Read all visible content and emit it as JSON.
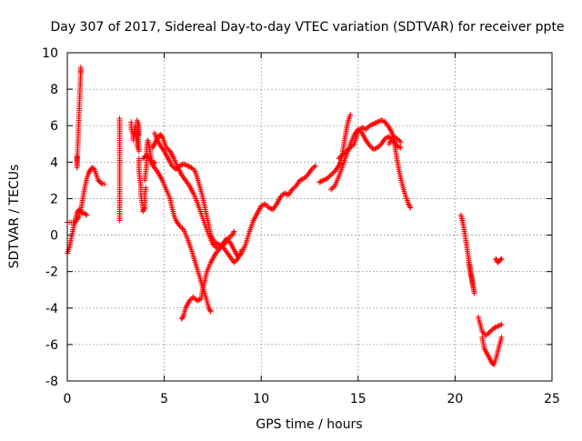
{
  "chart_data": {
    "type": "scatter",
    "title": "Day 307 of 2017, Sidereal Day-to-day VTEC variation (SDTVAR) for receiver ppte",
    "xlabel": "GPS time / hours",
    "ylabel": "SDTVAR / TECUs",
    "xlim": [
      0,
      25
    ],
    "ylim": [
      -8,
      10
    ],
    "xticks": [
      "0",
      "5",
      "10",
      "15",
      "20",
      "25"
    ],
    "yticks": [
      "-8",
      "-6",
      "-4",
      "-2",
      "0",
      "2",
      "4",
      "6",
      "8",
      "10"
    ],
    "grid": true,
    "marker": "+",
    "series_color": "#ff0000",
    "tracks": [
      [
        [
          0.0,
          -1.0
        ],
        [
          0.1,
          -0.7
        ],
        [
          0.2,
          -0.2
        ],
        [
          0.3,
          0.3
        ],
        [
          0.4,
          0.8
        ],
        [
          0.5,
          1.2
        ],
        [
          0.6,
          1.4
        ],
        [
          0.7,
          1.3
        ],
        [
          0.8,
          1.2
        ],
        [
          0.9,
          1.2
        ],
        [
          1.0,
          1.1
        ]
      ],
      [
        [
          0.0,
          0.7
        ],
        [
          0.2,
          0.7
        ],
        [
          0.4,
          0.7
        ],
        [
          0.6,
          1.0
        ],
        [
          0.7,
          1.4
        ],
        [
          0.8,
          2.0
        ],
        [
          0.9,
          2.6
        ],
        [
          1.0,
          3.1
        ],
        [
          1.1,
          3.4
        ],
        [
          1.2,
          3.6
        ],
        [
          1.3,
          3.7
        ],
        [
          1.4,
          3.6
        ],
        [
          1.5,
          3.3
        ],
        [
          1.6,
          3.0
        ],
        [
          1.7,
          2.9
        ],
        [
          1.8,
          2.8
        ],
        [
          1.9,
          2.8
        ]
      ],
      [
        [
          2.7,
          6.4
        ],
        [
          2.7,
          5.4
        ],
        [
          2.7,
          4.2
        ],
        [
          2.7,
          2.6
        ],
        [
          2.7,
          2.1
        ],
        [
          2.7,
          1.4
        ],
        [
          2.7,
          1.1
        ],
        [
          2.7,
          0.8
        ]
      ],
      [
        [
          3.3,
          6.2
        ],
        [
          3.3,
          5.8
        ],
        [
          3.4,
          5.5
        ],
        [
          3.4,
          5.2
        ],
        [
          3.5,
          6.0
        ],
        [
          3.5,
          5.6
        ],
        [
          3.6,
          5.2
        ],
        [
          3.6,
          4.9
        ],
        [
          3.7,
          4.6
        ],
        [
          3.6,
          6.3
        ],
        [
          3.7,
          6.0
        ],
        [
          3.7,
          5.5
        ]
      ],
      [
        [
          3.7,
          4.2
        ],
        [
          3.7,
          3.6
        ],
        [
          3.75,
          3.0
        ],
        [
          3.8,
          2.6
        ],
        [
          3.8,
          2.2
        ],
        [
          3.85,
          1.8
        ],
        [
          3.9,
          1.6
        ],
        [
          3.9,
          1.3
        ],
        [
          4.0,
          1.5
        ],
        [
          4.0,
          2.2
        ],
        [
          4.05,
          2.6
        ]
      ],
      [
        [
          4.0,
          3.0
        ],
        [
          4.1,
          4.0
        ],
        [
          4.1,
          4.8
        ],
        [
          4.15,
          5.2
        ],
        [
          4.2,
          5.0
        ],
        [
          4.3,
          4.4
        ],
        [
          4.4,
          3.8
        ],
        [
          4.5,
          4.0
        ]
      ],
      [
        [
          4.4,
          4.8
        ],
        [
          4.5,
          5.0
        ],
        [
          4.6,
          5.2
        ],
        [
          4.7,
          5.4
        ],
        [
          4.8,
          5.5
        ],
        [
          4.9,
          5.4
        ],
        [
          5.0,
          5.1
        ],
        [
          5.1,
          4.8
        ],
        [
          5.3,
          4.6
        ],
        [
          5.5,
          4.2
        ],
        [
          5.7,
          3.7
        ],
        [
          5.9,
          3.3
        ],
        [
          6.1,
          3.0
        ],
        [
          6.3,
          2.7
        ],
        [
          6.5,
          2.3
        ],
        [
          6.7,
          1.8
        ],
        [
          6.9,
          1.2
        ],
        [
          7.1,
          0.6
        ],
        [
          7.3,
          0.0
        ],
        [
          7.5,
          -0.5
        ],
        [
          7.7,
          -0.7
        ],
        [
          7.9,
          -0.7
        ],
        [
          8.1,
          -0.5
        ],
        [
          8.3,
          -0.2
        ],
        [
          8.5,
          0.0
        ],
        [
          8.6,
          0.2
        ]
      ],
      [
        [
          3.9,
          4.2
        ],
        [
          4.1,
          4.4
        ],
        [
          4.3,
          4.1
        ],
        [
          4.5,
          3.7
        ],
        [
          4.7,
          3.4
        ],
        [
          4.9,
          3.0
        ],
        [
          5.1,
          2.5
        ],
        [
          5.3,
          2.0
        ],
        [
          5.4,
          1.5
        ],
        [
          5.5,
          1.1
        ],
        [
          5.6,
          0.8
        ],
        [
          5.8,
          0.5
        ],
        [
          6.0,
          0.3
        ],
        [
          6.2,
          -0.2
        ],
        [
          6.4,
          -0.8
        ],
        [
          6.6,
          -1.5
        ],
        [
          6.8,
          -2.2
        ],
        [
          7.0,
          -2.9
        ],
        [
          7.2,
          -3.6
        ],
        [
          7.3,
          -4.0
        ],
        [
          7.4,
          -4.2
        ]
      ],
      [
        [
          5.9,
          -4.6
        ],
        [
          6.0,
          -4.4
        ],
        [
          6.1,
          -4.0
        ],
        [
          6.3,
          -3.6
        ],
        [
          6.5,
          -3.4
        ],
        [
          6.7,
          -3.6
        ],
        [
          6.9,
          -3.5
        ],
        [
          7.0,
          -2.9
        ],
        [
          7.2,
          -2.0
        ],
        [
          7.4,
          -1.5
        ],
        [
          7.6,
          -1.1
        ],
        [
          7.8,
          -0.8
        ],
        [
          8.0,
          -0.5
        ],
        [
          8.2,
          -0.2
        ],
        [
          8.4,
          -0.4
        ],
        [
          8.6,
          -0.8
        ],
        [
          8.8,
          -1.2
        ],
        [
          9.0,
          -1.0
        ],
        [
          9.2,
          -0.5
        ],
        [
          9.4,
          0.2
        ],
        [
          9.6,
          0.8
        ],
        [
          9.8,
          1.2
        ],
        [
          10.0,
          1.6
        ],
        [
          10.2,
          1.7
        ],
        [
          10.4,
          1.5
        ],
        [
          10.6,
          1.4
        ],
        [
          10.8,
          1.7
        ],
        [
          11.0,
          2.1
        ],
        [
          11.2,
          2.3
        ],
        [
          11.4,
          2.2
        ],
        [
          11.6,
          2.5
        ],
        [
          11.8,
          2.7
        ],
        [
          12.0,
          3.0
        ],
        [
          12.2,
          3.1
        ],
        [
          12.4,
          3.3
        ],
        [
          12.6,
          3.6
        ],
        [
          12.8,
          3.8
        ]
      ],
      [
        [
          4.5,
          5.6
        ],
        [
          4.6,
          5.3
        ],
        [
          4.8,
          4.9
        ],
        [
          5.0,
          4.6
        ],
        [
          5.2,
          4.2
        ],
        [
          5.4,
          3.8
        ],
        [
          5.6,
          3.6
        ],
        [
          5.8,
          3.8
        ],
        [
          6.0,
          3.9
        ],
        [
          6.2,
          3.8
        ],
        [
          6.4,
          3.7
        ],
        [
          6.6,
          3.5
        ],
        [
          6.8,
          2.8
        ],
        [
          7.0,
          2.0
        ],
        [
          7.2,
          1.0
        ],
        [
          7.4,
          0.0
        ],
        [
          7.6,
          -0.4
        ],
        [
          7.8,
          -0.5
        ],
        [
          8.0,
          -0.6
        ],
        [
          8.2,
          -0.9
        ],
        [
          8.4,
          -1.2
        ],
        [
          8.6,
          -1.5
        ],
        [
          8.8,
          -1.3
        ],
        [
          9.0,
          -0.8
        ]
      ],
      [
        [
          13.0,
          2.9
        ],
        [
          13.2,
          3.0
        ],
        [
          13.4,
          3.1
        ],
        [
          13.6,
          3.3
        ],
        [
          13.8,
          3.5
        ],
        [
          14.0,
          3.8
        ],
        [
          14.1,
          4.0
        ],
        [
          14.2,
          4.5
        ],
        [
          14.3,
          5.2
        ],
        [
          14.4,
          5.8
        ],
        [
          14.5,
          6.3
        ],
        [
          14.6,
          6.6
        ]
      ],
      [
        [
          13.6,
          2.5
        ],
        [
          13.8,
          2.7
        ],
        [
          14.0,
          3.2
        ],
        [
          14.2,
          3.8
        ],
        [
          14.4,
          4.4
        ],
        [
          14.6,
          5.0
        ],
        [
          14.8,
          5.5
        ],
        [
          15.0,
          5.8
        ],
        [
          15.2,
          5.6
        ],
        [
          15.4,
          5.2
        ],
        [
          15.6,
          4.9
        ],
        [
          15.8,
          4.7
        ],
        [
          16.0,
          4.8
        ],
        [
          16.2,
          5.0
        ],
        [
          16.4,
          5.3
        ],
        [
          16.6,
          5.4
        ],
        [
          16.8,
          5.2
        ],
        [
          17.0,
          4.9
        ],
        [
          17.2,
          4.8
        ]
      ],
      [
        [
          14.0,
          4.2
        ],
        [
          14.4,
          4.6
        ],
        [
          14.8,
          5.0
        ],
        [
          15.0,
          5.7
        ],
        [
          15.2,
          5.9
        ],
        [
          15.4,
          5.8
        ],
        [
          15.6,
          6.0
        ],
        [
          15.8,
          6.1
        ],
        [
          16.0,
          6.2
        ],
        [
          16.2,
          6.3
        ],
        [
          16.4,
          6.2
        ],
        [
          16.6,
          5.9
        ],
        [
          16.8,
          5.5
        ],
        [
          17.0,
          4.2
        ],
        [
          17.1,
          3.6
        ],
        [
          17.2,
          3.1
        ],
        [
          17.3,
          2.7
        ],
        [
          17.4,
          2.3
        ],
        [
          17.5,
          2.0
        ],
        [
          17.6,
          1.7
        ],
        [
          17.7,
          1.5
        ]
      ],
      [
        [
          16.6,
          5.0
        ],
        [
          16.8,
          5.4
        ],
        [
          17.0,
          5.3
        ],
        [
          17.2,
          5.1
        ]
      ],
      [
        [
          20.3,
          1.1
        ],
        [
          20.4,
          0.7
        ],
        [
          20.5,
          0.1
        ],
        [
          20.6,
          -0.6
        ],
        [
          20.7,
          -1.3
        ],
        [
          20.8,
          -2.0
        ],
        [
          20.9,
          -2.6
        ],
        [
          21.0,
          -3.2
        ],
        [
          20.7,
          -1.5
        ],
        [
          20.8,
          -1.8
        ]
      ],
      [
        [
          21.2,
          -4.5
        ],
        [
          21.3,
          -4.9
        ],
        [
          21.4,
          -5.3
        ],
        [
          21.6,
          -5.5
        ],
        [
          21.8,
          -5.3
        ],
        [
          22.0,
          -5.1
        ],
        [
          22.2,
          -5.0
        ],
        [
          22.4,
          -4.9
        ]
      ],
      [
        [
          21.4,
          -5.6
        ],
        [
          21.5,
          -6.2
        ],
        [
          21.7,
          -6.6
        ],
        [
          21.9,
          -7.0
        ],
        [
          22.0,
          -7.1
        ],
        [
          22.1,
          -6.8
        ],
        [
          22.2,
          -6.4
        ],
        [
          22.3,
          -6.0
        ],
        [
          22.4,
          -5.6
        ]
      ],
      [
        [
          22.1,
          -1.3
        ],
        [
          22.2,
          -1.5
        ],
        [
          22.3,
          -1.4
        ],
        [
          22.4,
          -1.3
        ]
      ],
      [
        [
          0.5,
          4.3
        ],
        [
          0.5,
          3.9
        ],
        [
          0.5,
          3.7
        ],
        [
          0.7,
          9.2
        ],
        [
          0.7,
          8.9
        ]
      ]
    ]
  }
}
